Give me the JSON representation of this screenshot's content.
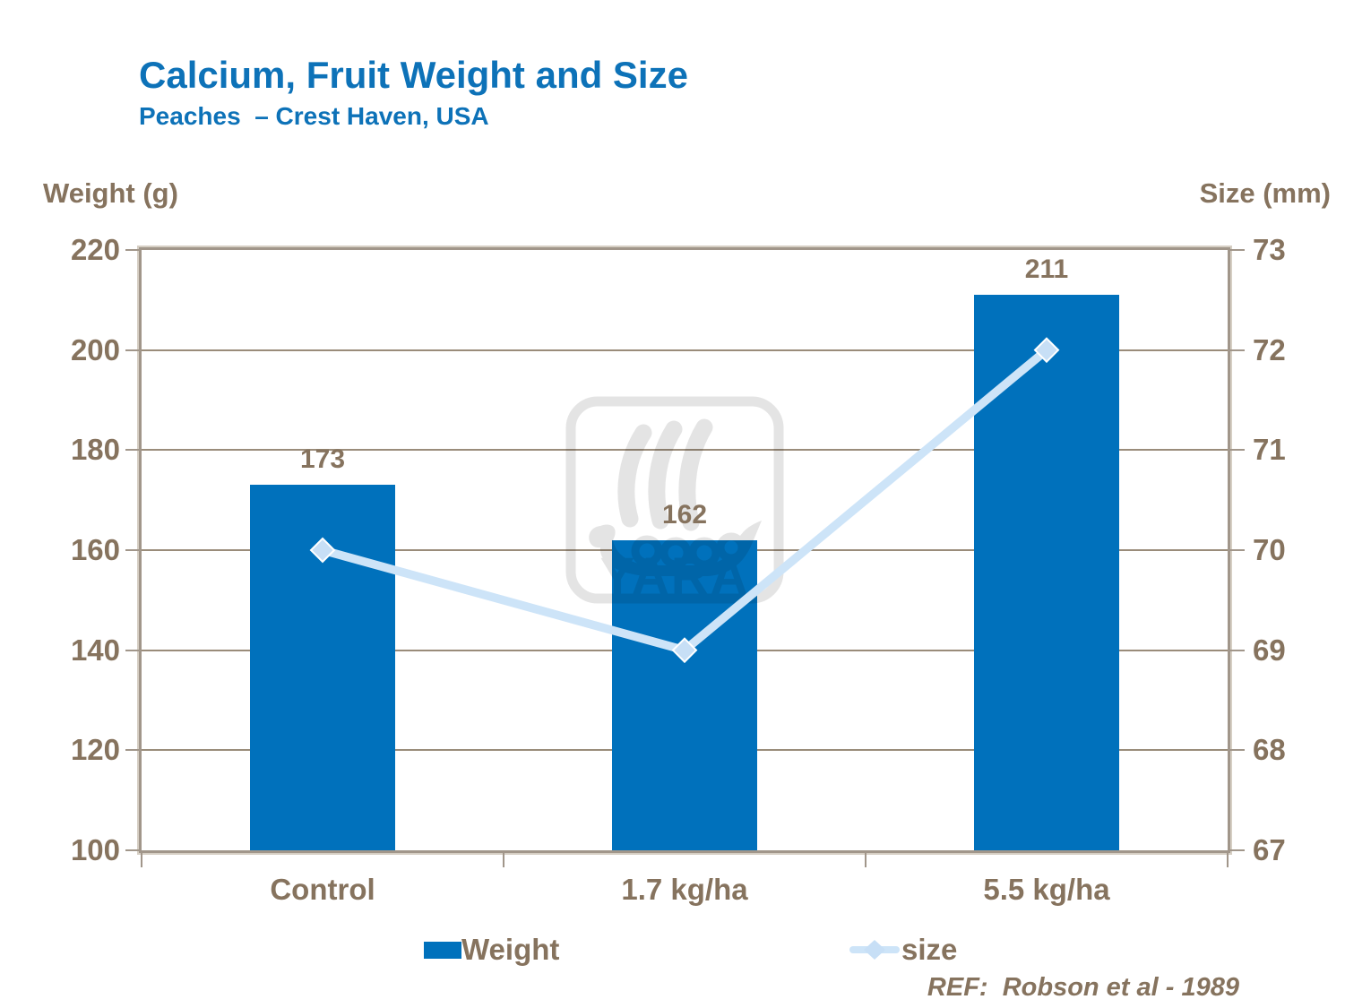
{
  "header": {
    "title": "Calcium, Fruit Weight and Size",
    "subtitle": "Peaches  – Crest Haven, USA"
  },
  "chart_data": {
    "type": "bar+line dual-axis",
    "title": "Calcium, Fruit Weight and Size",
    "subtitle": "Peaches – Crest Haven, USA",
    "categories": [
      "Control",
      "1.7 kg/ha",
      "5.5 kg/ha"
    ],
    "series": [
      {
        "name": "Weight",
        "type": "bar",
        "axis": "left",
        "values": [
          173,
          162,
          211
        ],
        "color": "#0071bc",
        "data_labels": [
          "173",
          "162",
          "211"
        ]
      },
      {
        "name": "size",
        "type": "line",
        "axis": "right",
        "values": [
          70,
          69,
          72
        ],
        "color": "#cde4f8",
        "marker": "diamond",
        "marker_color": "#c7dff6"
      }
    ],
    "ylabel_left": "Weight (g)",
    "ylabel_right": "Size (mm)",
    "ylim_left": [
      100,
      220
    ],
    "ylim_right": [
      67,
      73
    ],
    "left_ticks": [
      220,
      200,
      180,
      160,
      140,
      120,
      100
    ],
    "right_ticks": [
      73,
      72,
      71,
      70,
      69,
      68,
      67
    ],
    "grid": "horizontal gridlines on",
    "legend_position": "bottom"
  },
  "footer": {
    "reference": "REF:  Robson et al - 1989"
  },
  "watermark": {
    "label": "YARA viking-ship logo",
    "text": "YARA",
    "color": "#e4e4e4"
  },
  "colors": {
    "title_blue": "#0d72b8",
    "bar_blue": "#0071bc",
    "line_light_blue": "#cde4f8",
    "text_brown": "#86735e",
    "frame_tan": "#a1968a",
    "gridline_tan": "#9a8c7a"
  }
}
